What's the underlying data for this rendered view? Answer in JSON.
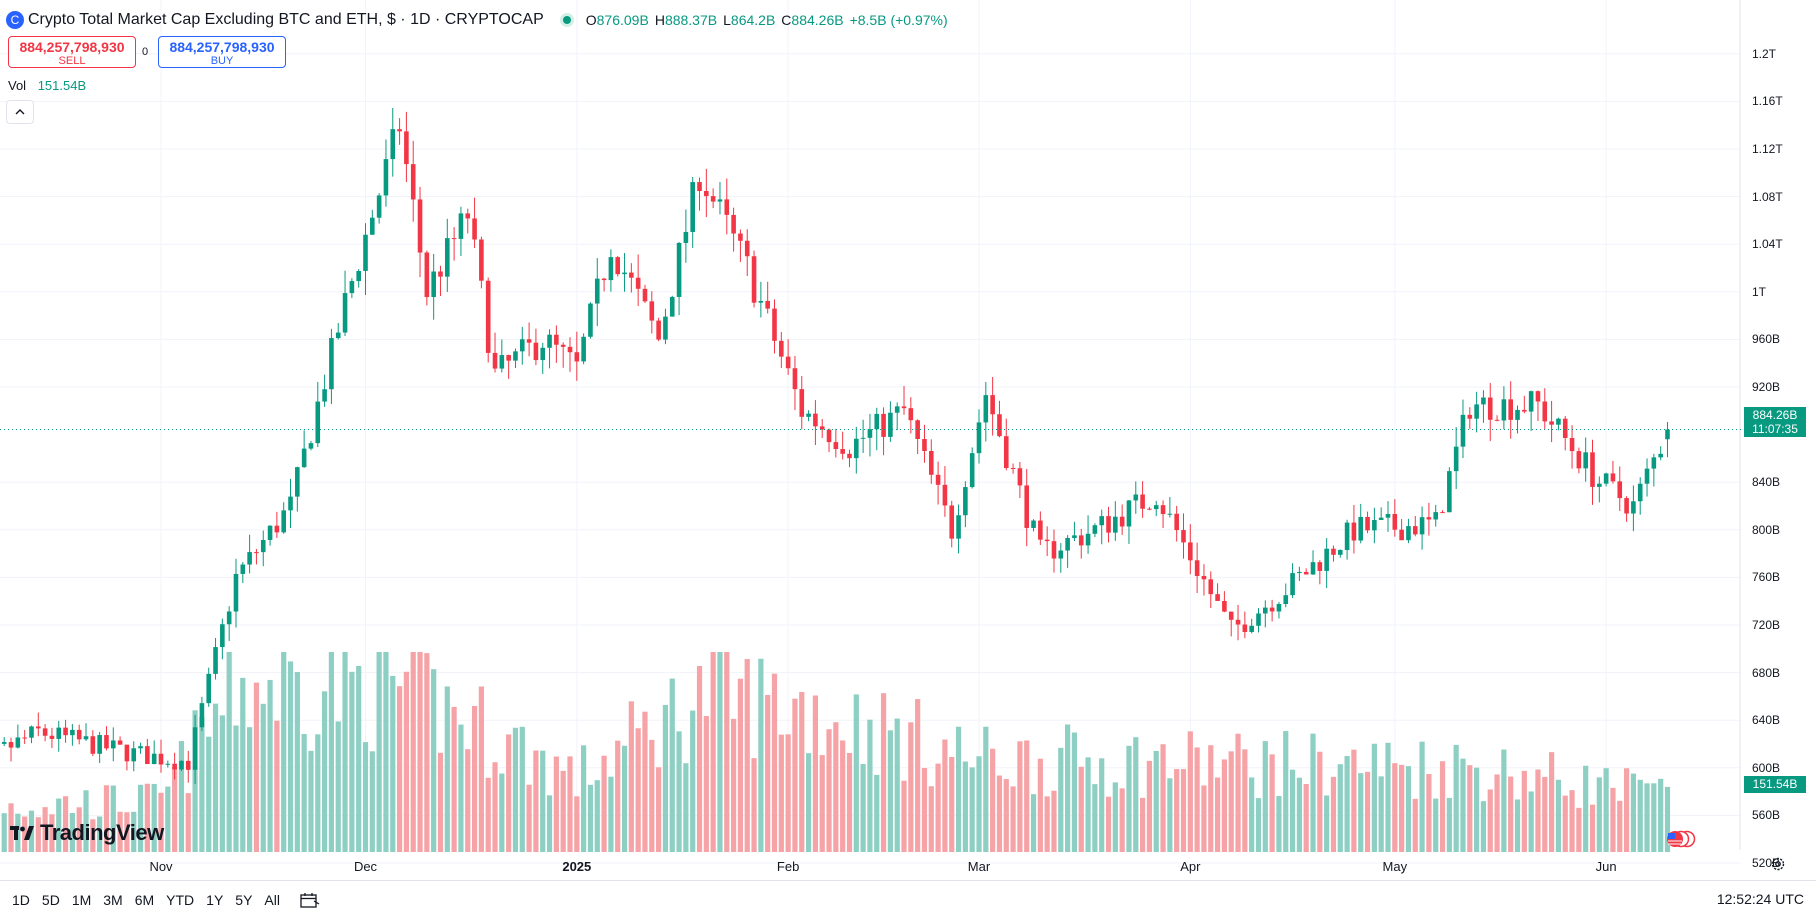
{
  "legend": {
    "symbol_icon": "currency-symbol-icon",
    "title": "Crypto Total Market Cap Excluding BTC and ETH, $ · 1D · CRYPTOCAP",
    "open_label": "O",
    "open": "876.09B",
    "high_label": "H",
    "high": "888.37B",
    "low_label": "L",
    "low": "864.2B",
    "close_label": "C",
    "close": "884.26B",
    "change": "+8.5B (+0.97%)"
  },
  "trade": {
    "sell_price": "884,257,798,930",
    "sell_label": "SELL",
    "spread": "0",
    "buy_price": "884,257,798,930",
    "buy_label": "BUY"
  },
  "volume_legend": {
    "label": "Vol",
    "value": "151.54B"
  },
  "price_tag": {
    "price": "884.26B",
    "countdown": "11:07:35"
  },
  "volume_tag": "151.54B",
  "logo_text": "TradingView",
  "ranges": [
    "1D",
    "5D",
    "1M",
    "3M",
    "6M",
    "YTD",
    "1Y",
    "5Y",
    "All"
  ],
  "clock": "12:52:24 UTC",
  "colors": {
    "up": "#089981",
    "down": "#f23645",
    "vol_up": "#8ecfc3",
    "vol_down": "#f5a3a7",
    "grid": "#f0f3fa"
  },
  "chart_data": {
    "type": "candlestick",
    "x_axis_labels": [
      {
        "label": "Nov",
        "date": "2024-11-01"
      },
      {
        "label": "Dec",
        "date": "2024-12-01"
      },
      {
        "label": "2025",
        "date": "2025-01-01",
        "bold": true
      },
      {
        "label": "Feb",
        "date": "2025-02-01"
      },
      {
        "label": "Mar",
        "date": "2025-03-01"
      },
      {
        "label": "Apr",
        "date": "2025-04-01"
      },
      {
        "label": "May",
        "date": "2025-05-01"
      },
      {
        "label": "Jun",
        "date": "2025-06-01"
      }
    ],
    "y_axis_labels": [
      {
        "label": "1.2T",
        "value": 1200
      },
      {
        "label": "1.16T",
        "value": 1160
      },
      {
        "label": "1.12T",
        "value": 1120
      },
      {
        "label": "1.08T",
        "value": 1080
      },
      {
        "label": "1.04T",
        "value": 1040
      },
      {
        "label": "1T",
        "value": 1000
      },
      {
        "label": "960B",
        "value": 960
      },
      {
        "label": "920B",
        "value": 920
      },
      {
        "label": "840B",
        "value": 840
      },
      {
        "label": "800B",
        "value": 800
      },
      {
        "label": "760B",
        "value": 760
      },
      {
        "label": "720B",
        "value": 720
      },
      {
        "label": "680B",
        "value": 680
      },
      {
        "label": "640B",
        "value": 640
      },
      {
        "label": "600B",
        "value": 600
      },
      {
        "label": "560B",
        "value": 560
      },
      {
        "label": "520B",
        "value": 520
      }
    ],
    "y_unit": "B (billions USD)",
    "last_price": 884.26,
    "key_points": [
      {
        "date": "2024-10-01",
        "close": 592
      },
      {
        "date": "2024-10-14",
        "close": 630
      },
      {
        "date": "2024-10-28",
        "close": 612
      },
      {
        "date": "2024-11-05",
        "close": 605
      },
      {
        "date": "2024-11-12",
        "close": 760
      },
      {
        "date": "2024-11-20",
        "close": 820
      },
      {
        "date": "2024-11-28",
        "close": 990
      },
      {
        "date": "2024-12-06",
        "close": 1140
      },
      {
        "date": "2024-12-10",
        "close": 1000
      },
      {
        "date": "2024-12-16",
        "close": 1065
      },
      {
        "date": "2024-12-20",
        "close": 930
      },
      {
        "date": "2024-12-27",
        "close": 960
      },
      {
        "date": "2025-01-01",
        "close": 935
      },
      {
        "date": "2025-01-06",
        "close": 1040
      },
      {
        "date": "2025-01-13",
        "close": 960
      },
      {
        "date": "2025-01-19",
        "close": 1100
      },
      {
        "date": "2025-01-26",
        "close": 1020
      },
      {
        "date": "2025-02-03",
        "close": 900
      },
      {
        "date": "2025-02-10",
        "close": 870
      },
      {
        "date": "2025-02-18",
        "close": 900
      },
      {
        "date": "2025-02-25",
        "close": 800
      },
      {
        "date": "2025-03-02",
        "close": 915
      },
      {
        "date": "2025-03-10",
        "close": 780
      },
      {
        "date": "2025-03-18",
        "close": 800
      },
      {
        "date": "2025-03-27",
        "close": 830
      },
      {
        "date": "2025-04-07",
        "close": 715
      },
      {
        "date": "2025-04-15",
        "close": 750
      },
      {
        "date": "2025-04-25",
        "close": 800
      },
      {
        "date": "2025-05-07",
        "close": 805
      },
      {
        "date": "2025-05-12",
        "close": 905
      },
      {
        "date": "2025-05-22",
        "close": 905
      },
      {
        "date": "2025-05-31",
        "close": 840
      },
      {
        "date": "2025-06-05",
        "close": 820
      },
      {
        "date": "2025-06-10",
        "close": 884.26
      }
    ],
    "volume_points": [
      {
        "date": "2024-10-01",
        "value": 120
      },
      {
        "date": "2024-11-01",
        "value": 140
      },
      {
        "date": "2024-11-12",
        "value": 450
      },
      {
        "date": "2024-12-06",
        "value": 450
      },
      {
        "date": "2025-01-01",
        "value": 200
      },
      {
        "date": "2025-01-20",
        "value": 430
      },
      {
        "date": "2025-02-03",
        "value": 390
      },
      {
        "date": "2025-03-01",
        "value": 250
      },
      {
        "date": "2025-04-07",
        "value": 240
      },
      {
        "date": "2025-05-12",
        "value": 230
      },
      {
        "date": "2025-06-10",
        "value": 151.54
      }
    ]
  }
}
